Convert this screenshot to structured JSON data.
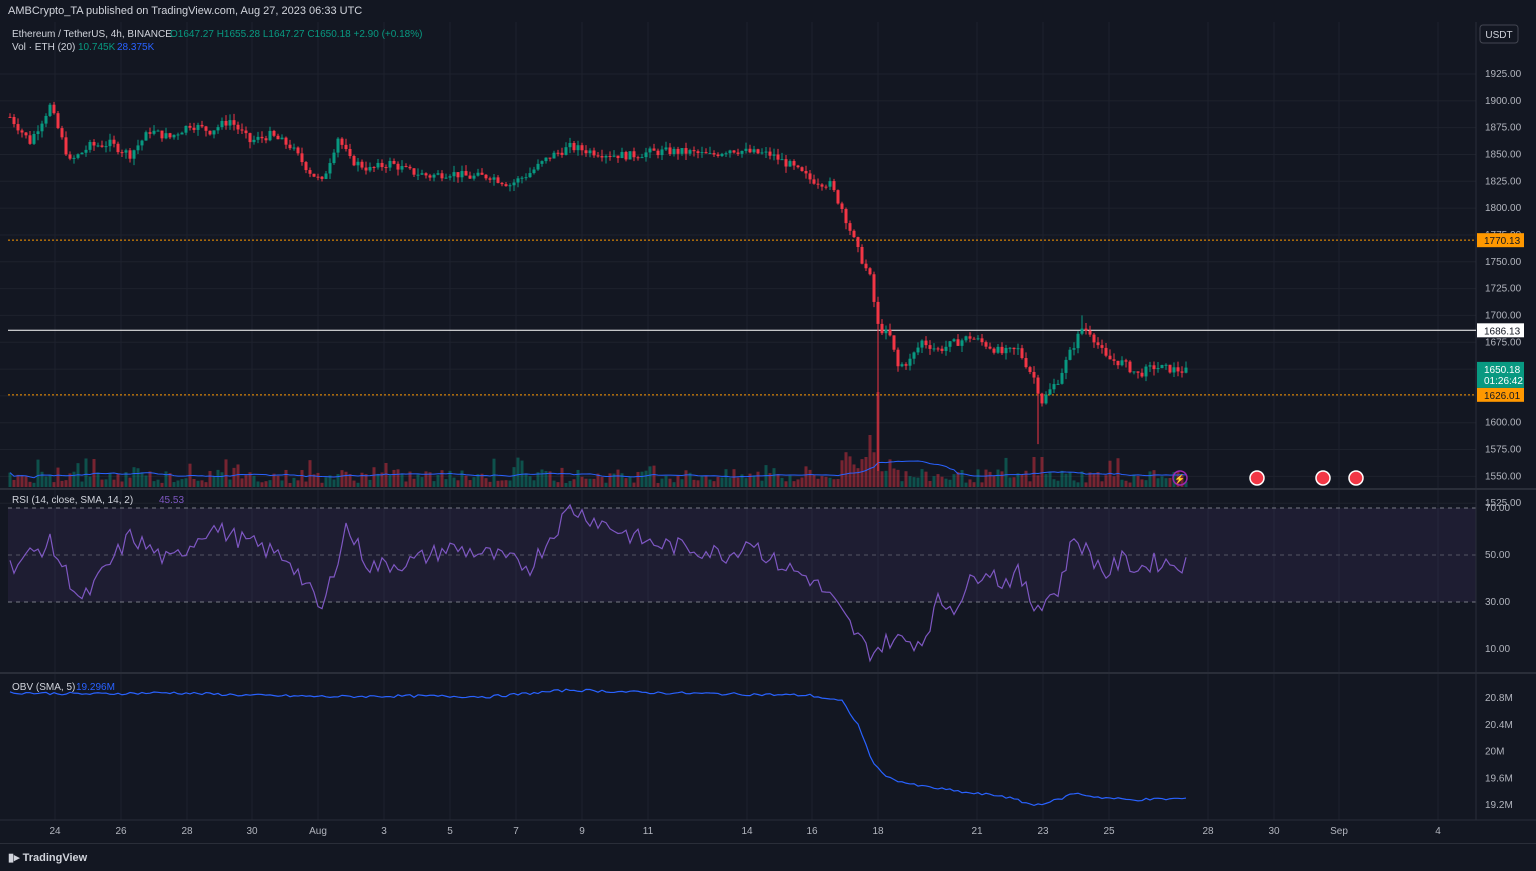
{
  "header": {
    "published_by": "AMBCrypto_TA published on TradingView.com, Aug 27, 2023 06:33 UTC"
  },
  "footer": {
    "brand": "TradingView"
  },
  "legend": {
    "symbol": "Ethereum / TetherUS, 4h, BINANCE",
    "ohlc": "O1647.27 H1655.28 L1647.27 C1650.18 +2.90 (+0.18%)",
    "volume_label": "Vol · ETH (20)",
    "volume_value": "10.745K",
    "volume_ma": "28.375K",
    "rsi_label": "RSI (14, close, SMA, 14, 2)",
    "rsi_value": "45.53",
    "obv_label": "OBV (SMA, 5)",
    "obv_value": "19.296M"
  },
  "axis": {
    "currency": "USDT",
    "price_ticks": [
      "1925.00",
      "1900.00",
      "1875.00",
      "1850.00",
      "1825.00",
      "1800.00",
      "1775.00",
      "1750.00",
      "1725.00",
      "1700.00",
      "1675.00",
      "1650.00",
      "1625.00",
      "1600.00",
      "1575.00",
      "1550.00",
      "1525.00"
    ],
    "rsi_ticks": [
      "70.00",
      "50.00",
      "30.00",
      "10.00"
    ],
    "obv_ticks": [
      "20.8M",
      "20.4M",
      "20M",
      "19.6M",
      "19.2M"
    ],
    "date_ticks": [
      "24",
      "26",
      "28",
      "30",
      "Aug",
      "3",
      "5",
      "7",
      "9",
      "11",
      "14",
      "16",
      "18",
      "21",
      "23",
      "25",
      "28",
      "30",
      "Sep",
      "4"
    ]
  },
  "price_levels": [
    {
      "label": "1770.13",
      "color": "#ff9800"
    },
    {
      "label": "1686.13",
      "color": "#ffffff"
    },
    {
      "label": "1626.01",
      "color": "#ff9800"
    }
  ],
  "current_price": {
    "label": "1650.18",
    "countdown": "01:26:42",
    "color": "#089981"
  },
  "colors": {
    "up": "#089981",
    "down": "#f23645",
    "rsi": "#7e57c2",
    "obv": "#2962ff",
    "vol_ma": "#2962ff"
  },
  "chart_data": {
    "type": "candlestick",
    "title": "Ethereum / TetherUS, 4h, BINANCE",
    "ylim": [
      1520,
      1930
    ],
    "horizontal_levels": [
      1770.13,
      1686.13,
      1626.01
    ],
    "waypoints_close": [
      [
        0,
        1885
      ],
      [
        5,
        1862
      ],
      [
        10,
        1895
      ],
      [
        15,
        1843
      ],
      [
        20,
        1858
      ],
      [
        25,
        1860
      ],
      [
        30,
        1850
      ],
      [
        35,
        1872
      ],
      [
        40,
        1866
      ],
      [
        45,
        1878
      ],
      [
        50,
        1872
      ],
      [
        55,
        1882
      ],
      [
        60,
        1862
      ],
      [
        65,
        1868
      ],
      [
        70,
        1858
      ],
      [
        75,
        1834
      ],
      [
        78,
        1824
      ],
      [
        82,
        1866
      ],
      [
        85,
        1845
      ],
      [
        90,
        1836
      ],
      [
        95,
        1842
      ],
      [
        100,
        1834
      ],
      [
        105,
        1830
      ],
      [
        110,
        1833
      ],
      [
        115,
        1829
      ],
      [
        120,
        1830
      ],
      [
        125,
        1822
      ],
      [
        130,
        1833
      ],
      [
        135,
        1848
      ],
      [
        140,
        1857
      ],
      [
        145,
        1853
      ],
      [
        150,
        1850
      ],
      [
        155,
        1849
      ],
      [
        160,
        1852
      ],
      [
        165,
        1853
      ],
      [
        170,
        1852
      ],
      [
        175,
        1849
      ],
      [
        180,
        1855
      ],
      [
        185,
        1852
      ],
      [
        190,
        1850
      ],
      [
        195,
        1840
      ],
      [
        200,
        1827
      ],
      [
        205,
        1822
      ],
      [
        208,
        1800
      ],
      [
        212,
        1760
      ],
      [
        215,
        1735
      ],
      [
        217,
        1690
      ],
      [
        220,
        1680
      ],
      [
        222,
        1652
      ],
      [
        225,
        1658
      ],
      [
        228,
        1676
      ],
      [
        232,
        1668
      ],
      [
        236,
        1674
      ],
      [
        240,
        1680
      ],
      [
        244,
        1673
      ],
      [
        248,
        1665
      ],
      [
        252,
        1668
      ],
      [
        256,
        1642
      ],
      [
        258,
        1620
      ],
      [
        262,
        1640
      ],
      [
        265,
        1665
      ],
      [
        268,
        1688
      ],
      [
        270,
        1685
      ],
      [
        274,
        1660
      ],
      [
        278,
        1656
      ],
      [
        282,
        1645
      ],
      [
        286,
        1652
      ],
      [
        290,
        1650
      ],
      [
        294,
        1648
      ]
    ],
    "rsi_waypoints": [
      [
        0,
        45
      ],
      [
        10,
        55
      ],
      [
        18,
        30
      ],
      [
        30,
        58
      ],
      [
        40,
        47
      ],
      [
        50,
        62
      ],
      [
        60,
        55
      ],
      [
        70,
        48
      ],
      [
        78,
        26
      ],
      [
        84,
        62
      ],
      [
        90,
        45
      ],
      [
        100,
        47
      ],
      [
        110,
        53
      ],
      [
        120,
        50
      ],
      [
        130,
        45
      ],
      [
        140,
        70
      ],
      [
        150,
        62
      ],
      [
        160,
        55
      ],
      [
        170,
        53
      ],
      [
        180,
        50
      ],
      [
        185,
        57
      ],
      [
        190,
        48
      ],
      [
        200,
        40
      ],
      [
        205,
        32
      ],
      [
        210,
        20
      ],
      [
        215,
        8
      ],
      [
        220,
        14
      ],
      [
        228,
        13
      ],
      [
        232,
        30
      ],
      [
        236,
        28
      ],
      [
        240,
        38
      ],
      [
        244,
        45
      ],
      [
        248,
        38
      ],
      [
        252,
        42
      ],
      [
        256,
        28
      ],
      [
        262,
        35
      ],
      [
        266,
        58
      ],
      [
        270,
        50
      ],
      [
        274,
        42
      ],
      [
        278,
        48
      ],
      [
        282,
        44
      ],
      [
        286,
        47
      ],
      [
        294,
        46
      ]
    ],
    "obv_waypoints": [
      [
        0,
        20.88
      ],
      [
        20,
        20.86
      ],
      [
        40,
        20.88
      ],
      [
        60,
        20.84
      ],
      [
        80,
        20.82
      ],
      [
        100,
        20.83
      ],
      [
        120,
        20.82
      ],
      [
        140,
        20.92
      ],
      [
        160,
        20.88
      ],
      [
        180,
        20.86
      ],
      [
        200,
        20.84
      ],
      [
        208,
        20.75
      ],
      [
        212,
        20.4
      ],
      [
        216,
        19.8
      ],
      [
        220,
        19.6
      ],
      [
        226,
        19.5
      ],
      [
        232,
        19.45
      ],
      [
        240,
        19.38
      ],
      [
        248,
        19.34
      ],
      [
        256,
        19.2
      ],
      [
        262,
        19.28
      ],
      [
        266,
        19.38
      ],
      [
        272,
        19.32
      ],
      [
        280,
        19.28
      ],
      [
        294,
        19.3
      ]
    ]
  }
}
